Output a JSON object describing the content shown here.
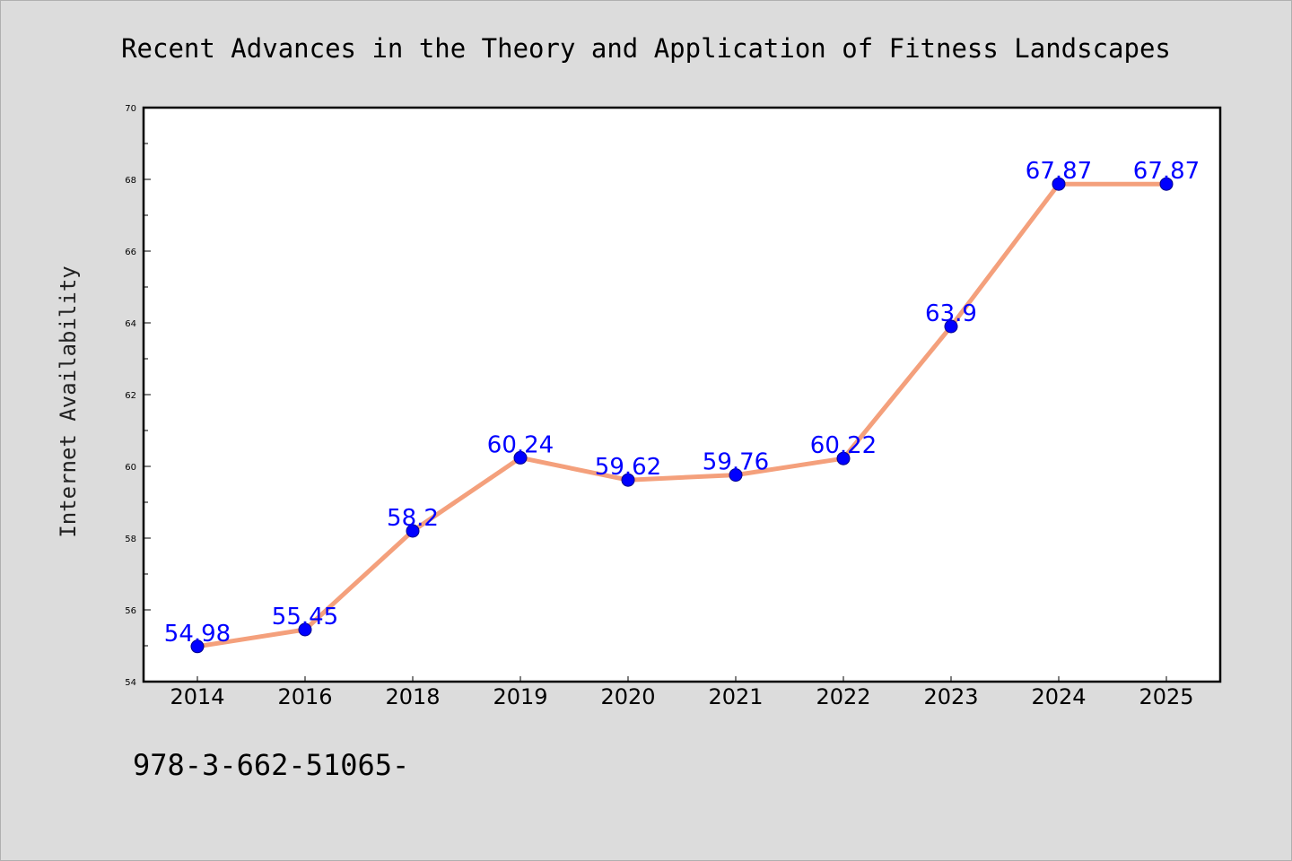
{
  "chart_data": {
    "type": "line",
    "title": "Recent Advances in the Theory and Application of Fitness Landscapes",
    "xlabel": "",
    "ylabel": "Internet Availability",
    "categories": [
      "2014",
      "2016",
      "2018",
      "2019",
      "2020",
      "2021",
      "2022",
      "2023",
      "2024",
      "2025"
    ],
    "series": [
      {
        "values": [
          54.98,
          55.45,
          58.2,
          60.24,
          59.62,
          59.76,
          60.22,
          63.9,
          67.87,
          67.87
        ],
        "labels": [
          "54.98",
          "55.45",
          "58.2",
          "60.24",
          "59.62",
          "59.76",
          "60.22",
          "63.9",
          "67.87",
          "67.87"
        ]
      }
    ],
    "ylim": [
      54,
      70
    ],
    "yticks": [
      "54",
      "56",
      "58",
      "60",
      "62",
      "64",
      "66",
      "68",
      "70"
    ],
    "grid": false,
    "line_color": "#f4a07c",
    "marker_color": "#0000ff",
    "label_color": "#0000ff"
  },
  "footer": {
    "text": "978-3-662-51065-"
  }
}
